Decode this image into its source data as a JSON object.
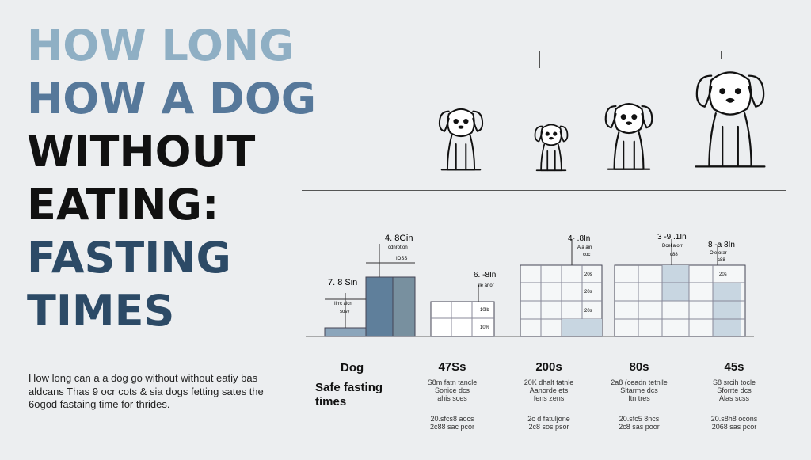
{
  "title": {
    "lines": [
      "HOW LONG",
      "HOW A DOG",
      "WITHOUT",
      "EATING:",
      "FASTING",
      "TIMES"
    ],
    "colors": [
      "#8fafc4",
      "#56789a",
      "#111111",
      "#111111",
      "#2c4a66",
      "#2c4a66"
    ]
  },
  "description": "How long can a a dog go without without eatiy bas aldcans Thas 9 ocr cots & sia dogs fetting sates the 6ogod fastaing time for thrides.",
  "chart_labels": {
    "b1_top": "7. 8 Sin",
    "b1_sub": "Ilrrc alcrr",
    "b1_sub2": "sosy",
    "b2_top": "4. 8Gin",
    "b2_sub": "cdnrotion",
    "b2_sub2": "IOSS",
    "b3_top": "6. -8In",
    "b3_sub": "ile arior",
    "b3_v1": "10Ib",
    "b3_v2": "10%",
    "b4_top": "4- .8In",
    "b4_sub": "Ala airr",
    "b4_sub2": "coc",
    "b4_v1": "20s",
    "b4_v2": "20s",
    "b4_v3": "20s",
    "b5_top": "3 -9 .1In",
    "b5_sub": "Dcel alorr",
    "b5_sub2": "c88",
    "b6_top": "8 -a 8In",
    "b6_sub": "Ole orar",
    "b6_sub2": "c88",
    "b6_v1": "20s"
  },
  "legend": {
    "dog": "Dog",
    "safe": "Safe fasting times"
  },
  "columns": [
    {
      "big": "47Ss",
      "l1": "S8m fatn tancle",
      "l2": "Sonice dcs",
      "l3": "ahis sces",
      "l4": "20.sfcs8 aocs",
      "l5": "2c88 sac pcor"
    },
    {
      "big": "200s",
      "l1": "20K dhalt tatnle",
      "l2": "Aanorde ets",
      "l3": "fens zens",
      "l4": "2c d fatuljone",
      "l5": "2c8 sos psor"
    },
    {
      "big": "80s",
      "l1": "2a8 (ceadn tetnlle",
      "l2": "Sltarme dcs",
      "l3": "ftn tres",
      "l4": "20.sfc5 8ncs",
      "l5": "2c8 sas poor"
    },
    {
      "big": "45s",
      "l1": "S8 srcih tocle",
      "l2": "Sforrte dcs",
      "l3": "Alas scss",
      "l4": "20.s8h8 ocons",
      "l5": "2068 sas pcor"
    }
  ]
}
